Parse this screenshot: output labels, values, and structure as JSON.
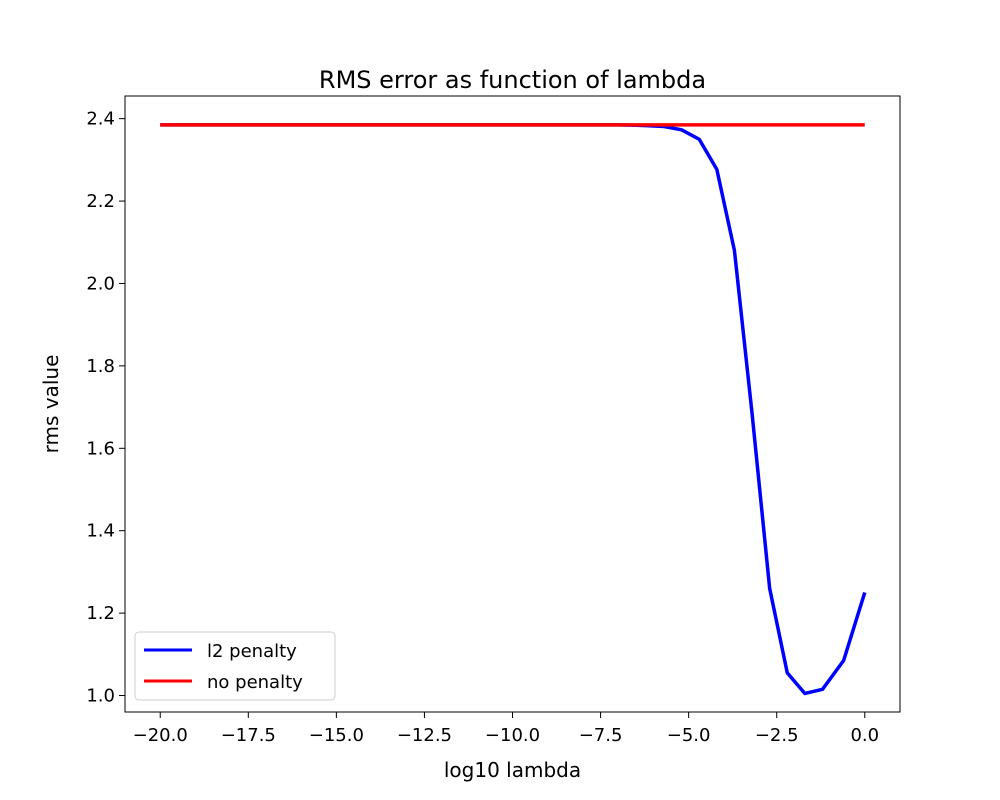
{
  "chart_data": {
    "type": "line",
    "title": "RMS error as function of lambda",
    "xlabel": "log10 lambda",
    "ylabel": "rms value",
    "xlim": [
      -21,
      1
    ],
    "ylim": [
      0.96,
      2.455
    ],
    "xticks": [
      -20.0,
      -17.5,
      -15.0,
      -12.5,
      -10.0,
      -7.5,
      -5.0,
      -2.5,
      0.0
    ],
    "xtick_labels": [
      "−20.0",
      "−17.5",
      "−15.0",
      "−12.5",
      "−10.0",
      "−7.5",
      "−5.0",
      "−2.5",
      "0.0"
    ],
    "yticks": [
      1.0,
      1.2,
      1.4,
      1.6,
      1.8,
      2.0,
      2.2,
      2.4
    ],
    "ytick_labels": [
      "1.0",
      "1.2",
      "1.4",
      "1.6",
      "1.8",
      "2.0",
      "2.2",
      "2.4"
    ],
    "grid": false,
    "legend_position": "bottom-left",
    "series": [
      {
        "name": "l2 penalty",
        "color": "#0000ff",
        "x": [
          -20.0,
          -19.0,
          -18.0,
          -17.0,
          -16.0,
          -15.0,
          -14.0,
          -13.0,
          -12.0,
          -11.0,
          -10.0,
          -9.0,
          -8.0,
          -7.0,
          -6.5,
          -6.2,
          -5.7,
          -5.2,
          -4.7,
          -4.2,
          -3.7,
          -3.2,
          -2.7,
          -2.2,
          -1.7,
          -1.2,
          -0.6,
          0.0
        ],
        "y": [
          2.385,
          2.385,
          2.385,
          2.385,
          2.385,
          2.385,
          2.385,
          2.385,
          2.385,
          2.385,
          2.385,
          2.385,
          2.385,
          2.385,
          2.384,
          2.383,
          2.381,
          2.373,
          2.35,
          2.277,
          2.08,
          1.685,
          1.26,
          1.055,
          1.005,
          1.015,
          1.085,
          1.25
        ]
      },
      {
        "name": "no penalty",
        "color": "#ff0000",
        "x": [
          -20.0,
          0.0
        ],
        "y": [
          2.385,
          2.385
        ]
      }
    ]
  }
}
